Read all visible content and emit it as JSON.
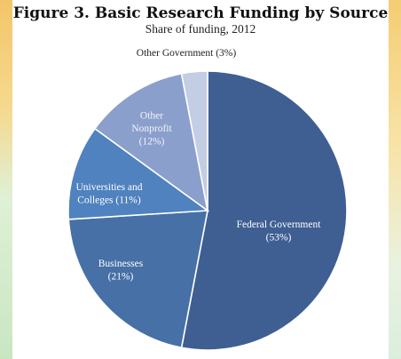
{
  "header": {
    "title": "Figure 3. Basic Research Funding by Source",
    "subtitle": "Share of funding, 2012"
  },
  "chart_data": {
    "type": "pie",
    "title": "Figure 3. Basic Research Funding by Source",
    "subtitle": "Share of funding, 2012",
    "slices": [
      {
        "label_lines": [
          "Federal Government",
          "(53%)"
        ],
        "category": "Federal Government",
        "value": 53,
        "color": "#3f5f93",
        "label_color": "#ffffff"
      },
      {
        "label_lines": [
          "Businesses",
          "(21%)"
        ],
        "category": "Businesses",
        "value": 21,
        "color": "#4670a6",
        "label_color": "#ffffff"
      },
      {
        "label_lines": [
          "Universities and",
          "Colleges (11%)"
        ],
        "category": "Universities and Colleges",
        "value": 11,
        "color": "#4f82be",
        "label_color": "#ffffff"
      },
      {
        "label_lines": [
          "Other",
          "Nonprofit",
          "(12%)"
        ],
        "category": "Other Nonprofit",
        "value": 12,
        "color": "#8b9fcc",
        "label_color": "#f2f4fa"
      },
      {
        "label_lines": [
          "Other Government (3%)"
        ],
        "category": "Other Government",
        "value": 3,
        "color": "#c3cde4",
        "label_color": "#222222",
        "outside": true
      }
    ]
  }
}
